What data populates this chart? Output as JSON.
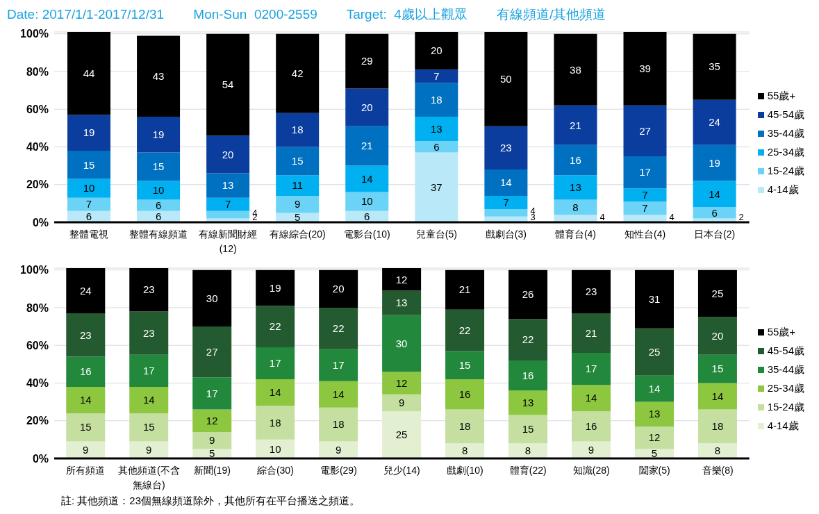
{
  "chart_data": [
    {
      "type": "bar",
      "stacked": true,
      "title": "Date: 2017/1/1-2017/12/31        Mon-Sun  0200-2559        Target:  4歲以上觀眾        有線頻道/其他頻道",
      "categories": [
        "整體電視",
        "整體有線頻道",
        "有線新聞財經(12)",
        "有線綜合(20)",
        "電影台(10)",
        "兒童台(5)",
        "戲劇台(3)",
        "體育台(4)",
        "知性台(4)",
        "日本台(2)"
      ],
      "series": [
        {
          "name": "4-14歲",
          "color": "#b9e8f9",
          "values": [
            6,
            6,
            2,
            5,
            6,
            37,
            3,
            4,
            4,
            2
          ]
        },
        {
          "name": "15-24歲",
          "color": "#6bd3f6",
          "values": [
            7,
            6,
            4,
            9,
            10,
            6,
            4,
            8,
            7,
            6
          ]
        },
        {
          "name": "25-34歲",
          "color": "#00b0f0",
          "values": [
            10,
            10,
            7,
            11,
            14,
            13,
            7,
            13,
            7,
            14
          ]
        },
        {
          "name": "35-44歲",
          "color": "#0070c0",
          "values": [
            15,
            15,
            13,
            15,
            21,
            18,
            14,
            16,
            17,
            19
          ]
        },
        {
          "name": "45-54歲",
          "color": "#0a3d9e",
          "values": [
            19,
            19,
            20,
            18,
            20,
            7,
            23,
            21,
            27,
            24
          ]
        },
        {
          "name": "55歲+",
          "color": "#000000",
          "values": [
            44,
            43,
            54,
            42,
            29,
            20,
            50,
            38,
            39,
            35
          ]
        }
      ],
      "ylim": [
        0,
        101
      ],
      "yticks": [
        {
          "value": 0,
          "label": "0%"
        },
        {
          "value": 20,
          "label": "20%"
        },
        {
          "value": 40,
          "label": "40%"
        },
        {
          "value": 60,
          "label": "60%"
        },
        {
          "value": 80,
          "label": "80%"
        },
        {
          "value": 100,
          "label": "100%"
        }
      ],
      "grid": "y",
      "legend": "right",
      "data_labels": true
    },
    {
      "type": "bar",
      "stacked": true,
      "categories": [
        "所有頻道",
        "其他頻道(不含無線台)",
        "新聞(19)",
        "綜合(30)",
        "電影(29)",
        "兒少(14)",
        "戲劇(10)",
        "體育(22)",
        "知識(28)",
        "闔家(5)",
        "音樂(8)"
      ],
      "series": [
        {
          "name": "4-14歲",
          "color": "#e2efd1",
          "values": [
            9,
            9,
            5,
            10,
            9,
            25,
            8,
            8,
            9,
            5,
            8
          ]
        },
        {
          "name": "15-24歲",
          "color": "#c5dfa1",
          "values": [
            15,
            15,
            9,
            18,
            18,
            9,
            18,
            15,
            16,
            12,
            18
          ]
        },
        {
          "name": "25-34歲",
          "color": "#8dc63f",
          "values": [
            14,
            14,
            12,
            14,
            14,
            12,
            16,
            13,
            14,
            13,
            14
          ]
        },
        {
          "name": "35-44歲",
          "color": "#22893c",
          "values": [
            16,
            17,
            17,
            17,
            17,
            30,
            15,
            16,
            17,
            14,
            15
          ]
        },
        {
          "name": "45-54歲",
          "color": "#245a30",
          "values": [
            23,
            23,
            27,
            22,
            22,
            13,
            22,
            22,
            21,
            25,
            20
          ]
        },
        {
          "name": "55歲+",
          "color": "#000000",
          "values": [
            24,
            23,
            30,
            19,
            20,
            12,
            21,
            26,
            23,
            31,
            25
          ]
        }
      ],
      "ylim": [
        0,
        101
      ],
      "yticks": [
        {
          "value": 0,
          "label": "0%"
        },
        {
          "value": 20,
          "label": "20%"
        },
        {
          "value": 40,
          "label": "40%"
        },
        {
          "value": 60,
          "label": "60%"
        },
        {
          "value": 80,
          "label": "80%"
        },
        {
          "value": 100,
          "label": "100%"
        }
      ],
      "grid": "y",
      "legend": "right",
      "data_labels": true,
      "annotations": [
        "註: 其他頻道：23個無線頻道除外，其他所有在平台播送之頻道。"
      ]
    }
  ]
}
